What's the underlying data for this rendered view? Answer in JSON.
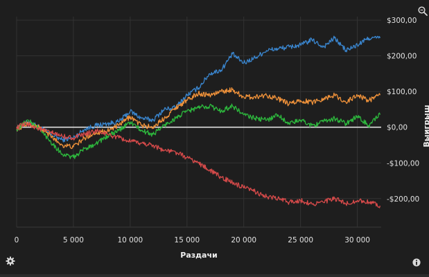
{
  "chart_data": {
    "type": "line",
    "xlabel": "Раздачи",
    "ylabel": "Выигрыш",
    "xlim": [
      0,
      32100
    ],
    "ylim": [
      -280,
      310
    ],
    "x_ticks": [
      0,
      5000,
      10000,
      15000,
      20000,
      25000,
      30000
    ],
    "x_tick_labels": [
      "0",
      "5 000",
      "10 000",
      "15 000",
      "20 000",
      "25 000",
      "30 000"
    ],
    "y_ticks": [
      300,
      200,
      100,
      0,
      -100,
      -200
    ],
    "y_tick_labels": [
      "$300,00",
      "$200,00",
      "$100,00",
      "$0,00",
      "-$100,00",
      "-$200,00"
    ],
    "y_axis_position": "right",
    "grid": true,
    "series": [
      {
        "color": "#3a86cf",
        "x": [
          0,
          1000,
          2000,
          3000,
          4000,
          5000,
          6000,
          7000,
          8000,
          9000,
          10000,
          11000,
          12000,
          13000,
          14000,
          15000,
          16000,
          17000,
          18000,
          19000,
          20000,
          21000,
          22000,
          23000,
          24000,
          25000,
          26000,
          27000,
          28000,
          29000,
          30000,
          31000,
          32000
        ],
        "y": [
          -5,
          15,
          0,
          -20,
          -35,
          -30,
          -5,
          5,
          10,
          15,
          45,
          25,
          20,
          50,
          55,
          90,
          110,
          150,
          160,
          205,
          180,
          195,
          215,
          220,
          225,
          230,
          245,
          225,
          250,
          215,
          230,
          250,
          250
        ]
      },
      {
        "color": "#f0923a",
        "x": [
          0,
          1000,
          2000,
          3000,
          4000,
          5000,
          6000,
          7000,
          8000,
          9000,
          10000,
          11000,
          12000,
          13000,
          14000,
          15000,
          16000,
          17000,
          18000,
          19000,
          20000,
          21000,
          22000,
          23000,
          24000,
          25000,
          26000,
          27000,
          28000,
          29000,
          30000,
          31000,
          32000
        ],
        "y": [
          -5,
          10,
          0,
          -25,
          -50,
          -55,
          -30,
          -15,
          -10,
          5,
          30,
          5,
          0,
          25,
          55,
          75,
          95,
          90,
          100,
          105,
          85,
          85,
          90,
          80,
          65,
          75,
          70,
          80,
          90,
          70,
          90,
          75,
          90
        ]
      },
      {
        "color": "#2db83d",
        "x": [
          0,
          1000,
          2000,
          3000,
          4000,
          5000,
          6000,
          7000,
          8000,
          9000,
          10000,
          11000,
          12000,
          13000,
          14000,
          15000,
          16000,
          17000,
          18000,
          19000,
          20000,
          21000,
          22000,
          23000,
          24000,
          25000,
          26000,
          27000,
          28000,
          29000,
          30000,
          31000,
          32000
        ],
        "y": [
          -5,
          20,
          -5,
          -40,
          -75,
          -85,
          -60,
          -45,
          -25,
          -10,
          15,
          -10,
          -20,
          5,
          25,
          45,
          55,
          60,
          45,
          60,
          35,
          25,
          20,
          35,
          10,
          20,
          5,
          15,
          25,
          10,
          30,
          5,
          35
        ]
      },
      {
        "color": "#d64a4a",
        "x": [
          0,
          1000,
          2000,
          3000,
          4000,
          5000,
          6000,
          7000,
          8000,
          9000,
          10000,
          11000,
          12000,
          13000,
          14000,
          15000,
          16000,
          17000,
          18000,
          19000,
          20000,
          21000,
          22000,
          23000,
          24000,
          25000,
          26000,
          27000,
          28000,
          29000,
          30000,
          31000,
          32000
        ],
        "y": [
          0,
          10,
          -5,
          -15,
          -25,
          -30,
          -20,
          -10,
          -20,
          -30,
          -40,
          -45,
          -50,
          -65,
          -70,
          -85,
          -100,
          -120,
          -140,
          -155,
          -170,
          -180,
          -195,
          -200,
          -210,
          -205,
          -215,
          -210,
          -200,
          -215,
          -205,
          -210,
          -220
        ]
      }
    ]
  },
  "icons": {
    "zoom": "zoom-icon",
    "settings": "gear-icon",
    "info": "info-icon"
  }
}
